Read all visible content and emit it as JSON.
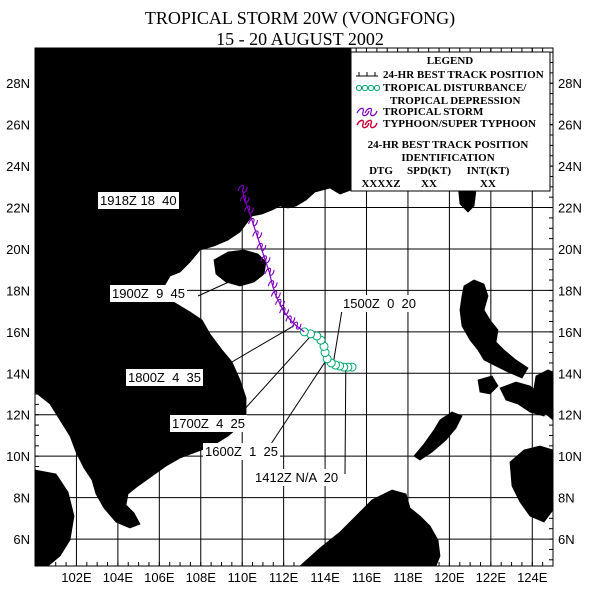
{
  "title": "TROPICAL STORM 20W (VONGFONG)",
  "subtitle": "15 - 20 AUGUST 2002",
  "colors": {
    "land": "#fbc8a0",
    "sea": "#ffffff",
    "grid": "#000000",
    "disturbance_track": "#00a86b",
    "storm_track": "#8000c0",
    "typhoon_track": "#d0003a"
  },
  "map": {
    "lon_range": [
      100,
      125
    ],
    "lat_range": [
      4.7,
      29.7
    ],
    "lon_labels": [
      "102E",
      "104E",
      "106E",
      "108E",
      "110E",
      "112E",
      "114E",
      "116E",
      "118E",
      "120E",
      "122E",
      "124E"
    ],
    "lat_labels": [
      "6N",
      "8N",
      "10N",
      "12N",
      "14N",
      "16N",
      "18N",
      "20N",
      "22N",
      "24N",
      "26N",
      "28N"
    ]
  },
  "legend": {
    "heading": "LEGEND",
    "items": [
      {
        "symbol": "best-track-icon",
        "label": "24-HR BEST TRACK POSITION"
      },
      {
        "symbol": "disturbance-icon",
        "label": "TROPICAL DISTURBANCE/"
      },
      {
        "symbol": "",
        "label": "TROPICAL DEPRESSION"
      },
      {
        "symbol": "storm-icon",
        "label": "TROPICAL STORM"
      },
      {
        "symbol": "typhoon-icon",
        "label": "TYPHOON/SUPER TYPHOON"
      }
    ],
    "id_heading_1": "24-HR BEST TRACK POSITION",
    "id_heading_2": "IDENTIFICATION",
    "columns": [
      "DTG",
      "SPD(KT)",
      "INT(KT)"
    ],
    "formats": [
      "XXXXZ",
      "XX",
      "XX"
    ]
  },
  "track": {
    "disturbance": [
      [
        115.3,
        14.3
      ],
      [
        115.1,
        14.3
      ],
      [
        114.9,
        14.3
      ],
      [
        114.7,
        14.35
      ],
      [
        114.5,
        14.4
      ],
      [
        114.3,
        14.5
      ],
      [
        114.1,
        14.7
      ],
      [
        114.0,
        15.0
      ],
      [
        113.95,
        15.3
      ],
      [
        113.8,
        15.6
      ],
      [
        113.6,
        15.8
      ],
      [
        113.3,
        15.9
      ],
      [
        113.0,
        16.0
      ]
    ],
    "storm": [
      [
        112.6,
        16.3
      ],
      [
        112.3,
        16.6
      ],
      [
        112.0,
        17.0
      ],
      [
        111.8,
        17.4
      ],
      [
        111.6,
        17.8
      ],
      [
        111.45,
        18.3
      ],
      [
        111.3,
        18.9
      ],
      [
        111.1,
        19.5
      ],
      [
        110.9,
        20.1
      ],
      [
        110.7,
        20.7
      ],
      [
        110.5,
        21.3
      ],
      [
        110.3,
        21.9
      ],
      [
        110.1,
        22.4
      ],
      [
        110.0,
        22.9
      ]
    ]
  },
  "annotations": [
    {
      "text": "1918Z 18  40",
      "point": [
        110.0,
        22.9
      ]
    },
    {
      "text": "1900Z  9  45",
      "point": [
        111.1,
        19.2
      ]
    },
    {
      "text": "1800Z  4  35",
      "point": [
        112.5,
        16.3
      ]
    },
    {
      "text": "1700Z  4  25",
      "point": [
        113.4,
        15.9
      ]
    },
    {
      "text": "1600Z  1  25",
      "point": [
        114.1,
        14.7
      ]
    },
    {
      "text": "1500Z  0  20",
      "point": [
        114.4,
        14.5
      ]
    },
    {
      "text": "1412Z N/A  20",
      "point": [
        115.0,
        14.3
      ]
    }
  ]
}
